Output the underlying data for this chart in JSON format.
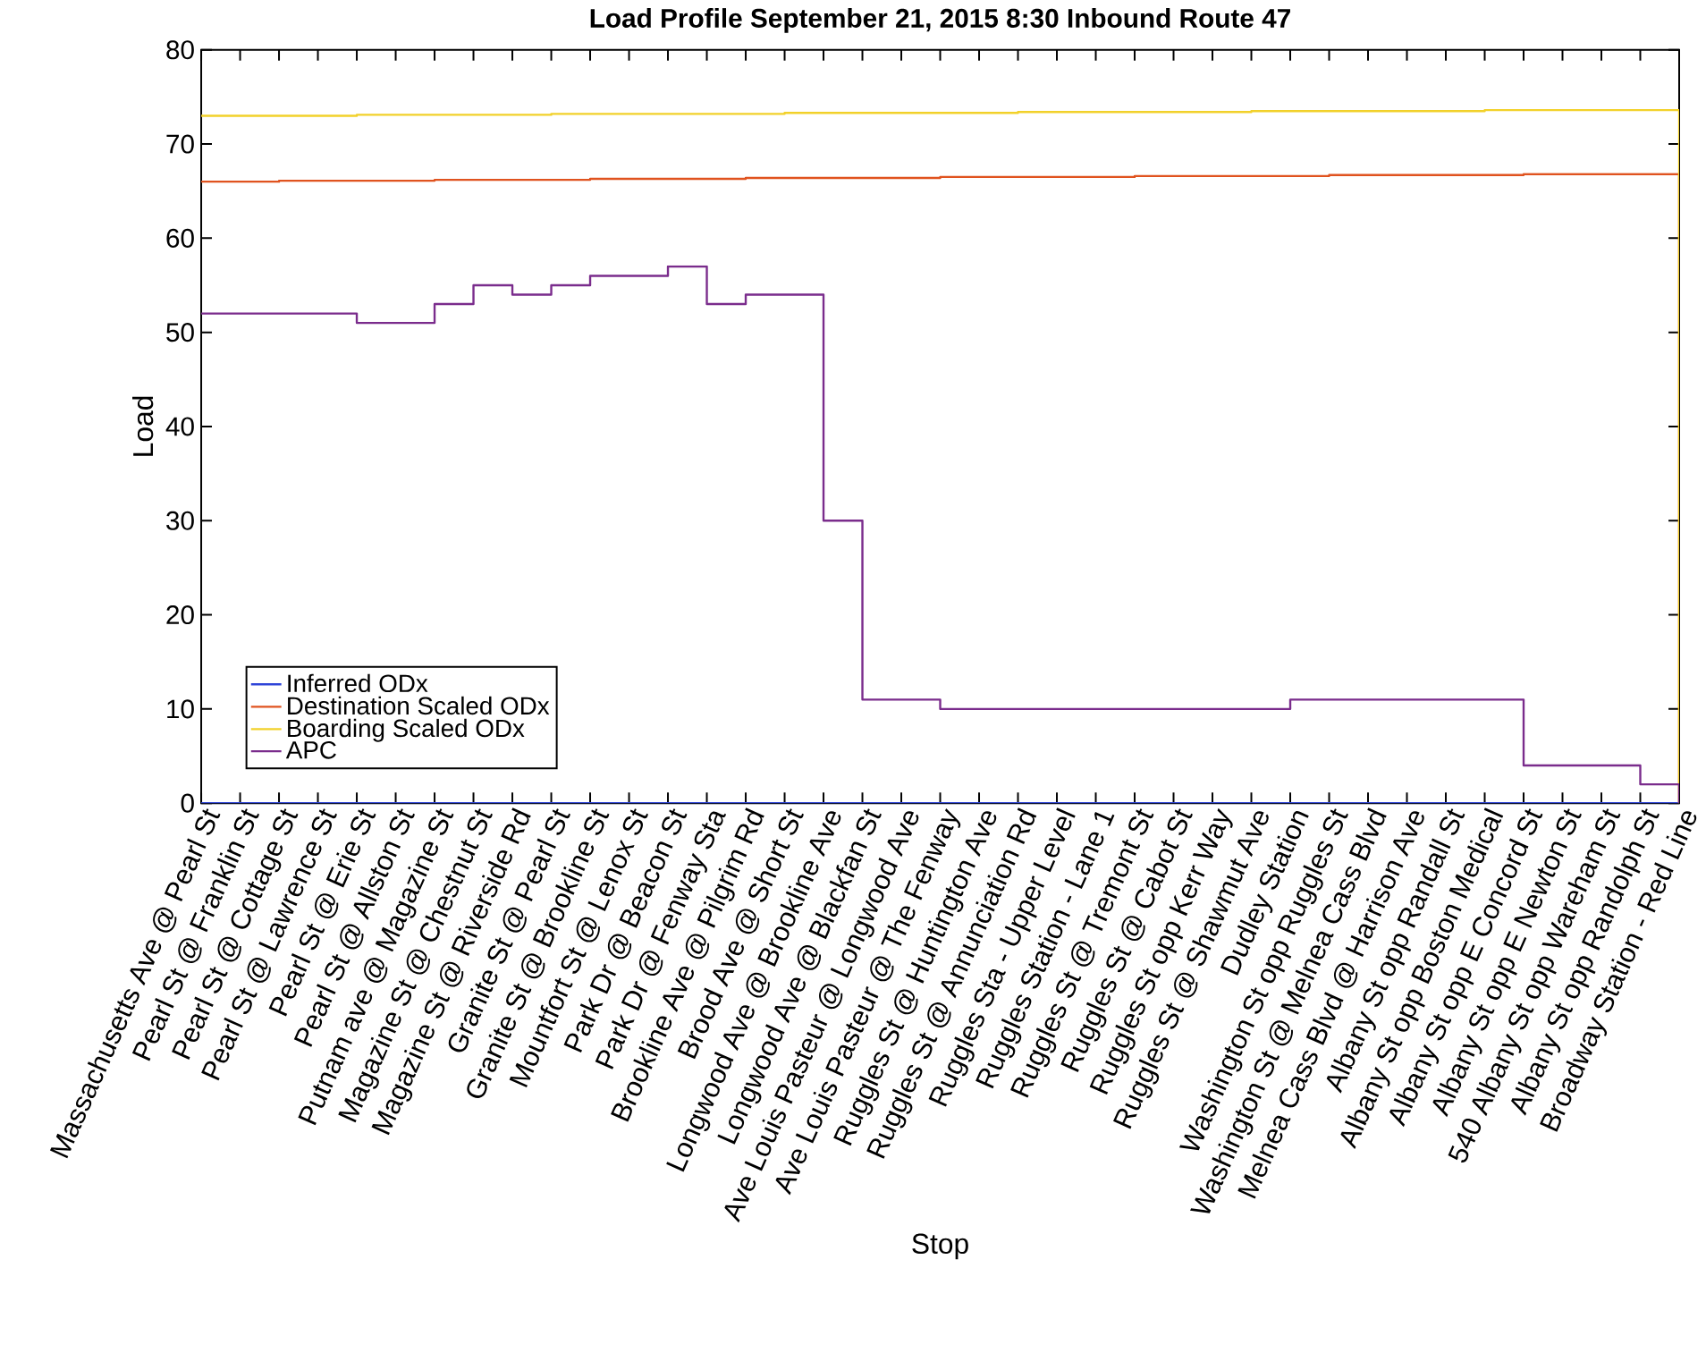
{
  "chart_data": {
    "type": "step",
    "title": "Load Profile September 21, 2015 8:30 Inbound Route 47",
    "xlabel": "Stop",
    "ylabel": "Load",
    "categories": [
      "Massachusetts Ave @ Pearl St",
      "Pearl St @ Franklin St",
      "Pearl St @ Cottage St",
      "Pearl St @ Lawrence St",
      "Pearl St @ Erie St",
      "Pearl St @ Allston St",
      "Putnam ave @ Magazine St",
      "Magazine St @ Chestnut St",
      "Magazine St @ Riverside Rd",
      "Granite St @ Pearl St",
      "Granite St @ Brookline St",
      "Mountfort St @ Lenox St",
      "Park Dr @ Beacon St",
      "Park Dr @ Fenway Sta",
      "Brookline Ave @ Pilgrim Rd",
      "Brood Ave @ Short St",
      "Longwood Ave @ Brookline Ave",
      "Longwood Ave @ Blackfan St",
      "Ave Louis Pasteur @ Longwood Ave",
      "Ave Louis Pasteur @ The Fenway",
      "Ruggles St @ Huntington Ave",
      "Ruggles St @ Annunciation Rd",
      "Ruggles Sta - Upper Level",
      "Ruggles Station - Lane 1",
      "Ruggles St @ Tremont St",
      "Ruggles St @ Cabot St",
      "Ruggles St opp Kerr Way",
      "Ruggles St @ Shawmut Ave",
      "Dudley Station",
      "Washington St opp Ruggles St",
      "Washington St @ Melnea Cass Blvd",
      "Melnea Cass Blvd @ Harrison Ave",
      "Albany St opp Randall St",
      "Albany St opp Boston Medical",
      "Albany St opp E Concord St",
      "Albany St opp E Newton St",
      "540 Albany St opp Wareham St",
      "Albany St opp Randolph St",
      "Broadway Station - Red Line"
    ],
    "series": [
      {
        "name": "Inferred ODx",
        "color": "#2f45d8",
        "values": [
          0,
          0,
          0,
          0,
          0,
          0,
          0,
          0,
          0,
          0,
          0,
          0,
          0,
          0,
          0,
          0,
          0,
          0,
          0,
          0,
          0,
          0,
          0,
          0,
          0,
          0,
          0,
          0,
          0,
          0,
          0,
          0,
          0,
          0,
          0,
          0,
          0,
          0,
          0
        ]
      },
      {
        "name": "Destination Scaled ODx",
        "color": "#e0531f",
        "values": [
          66.0,
          66.0,
          66.1,
          66.1,
          66.1,
          66.1,
          66.2,
          66.2,
          66.2,
          66.2,
          66.3,
          66.3,
          66.3,
          66.3,
          66.4,
          66.4,
          66.4,
          66.4,
          66.4,
          66.5,
          66.5,
          66.5,
          66.5,
          66.5,
          66.6,
          66.6,
          66.6,
          66.6,
          66.6,
          66.7,
          66.7,
          66.7,
          66.7,
          66.7,
          66.8,
          66.8,
          66.8,
          66.8,
          0
        ]
      },
      {
        "name": "Boarding Scaled ODx",
        "color": "#f2d12a",
        "values": [
          73.0,
          73.0,
          73.0,
          73.0,
          73.1,
          73.1,
          73.1,
          73.1,
          73.1,
          73.2,
          73.2,
          73.2,
          73.2,
          73.2,
          73.2,
          73.3,
          73.3,
          73.3,
          73.3,
          73.3,
          73.3,
          73.4,
          73.4,
          73.4,
          73.4,
          73.4,
          73.4,
          73.5,
          73.5,
          73.5,
          73.5,
          73.5,
          73.5,
          73.6,
          73.6,
          73.6,
          73.6,
          73.6,
          0
        ]
      },
      {
        "name": "APC",
        "color": "#7a2c8c",
        "values": [
          52,
          52,
          52,
          52,
          51,
          51,
          53,
          55,
          54,
          55,
          56,
          56,
          57,
          53,
          54,
          54,
          30,
          11,
          11,
          10,
          10,
          10,
          10,
          10,
          10,
          10,
          10,
          10,
          11,
          11,
          11,
          11,
          11,
          11,
          4,
          4,
          4,
          2,
          0
        ]
      }
    ],
    "ylim": [
      0,
      80
    ],
    "yticks": [
      0,
      10,
      20,
      30,
      40,
      50,
      60,
      70,
      80
    ],
    "legend": "bottom left"
  }
}
